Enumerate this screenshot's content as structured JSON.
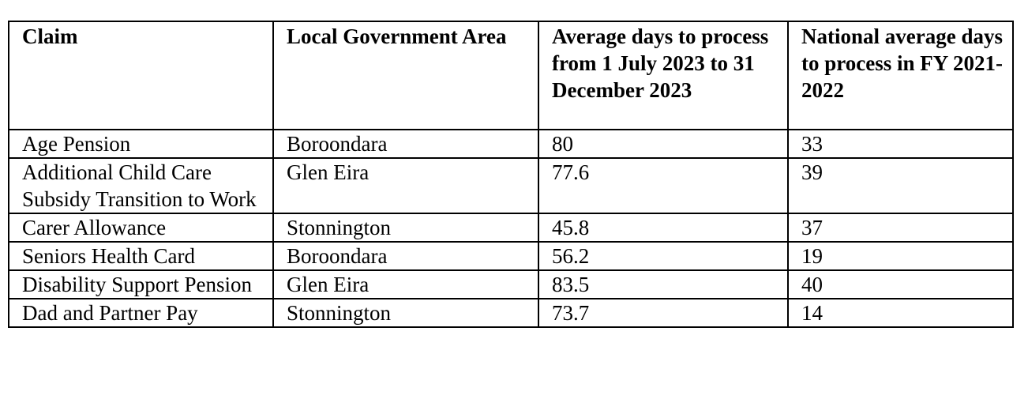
{
  "table": {
    "headers": [
      "Claim",
      "Local Government Area",
      "Average days to process from 1 July 2023 to 31 December 2023",
      "National average days to process in FY 2021-2022"
    ],
    "rows": [
      [
        "Age Pension",
        "Boroondara",
        "80",
        "33"
      ],
      [
        "Additional Child Care Subsidy Transition to Work",
        "Glen Eira",
        "77.6",
        "39"
      ],
      [
        "Carer Allowance",
        "Stonnington",
        "45.8",
        "37"
      ],
      [
        "Seniors Health Card",
        "Boroondara",
        "56.2",
        "19"
      ],
      [
        "Disability Support Pension",
        "Glen Eira",
        "83.5",
        "40"
      ],
      [
        "Dad and Partner Pay",
        "Stonnington",
        "73.7",
        "14"
      ]
    ]
  }
}
